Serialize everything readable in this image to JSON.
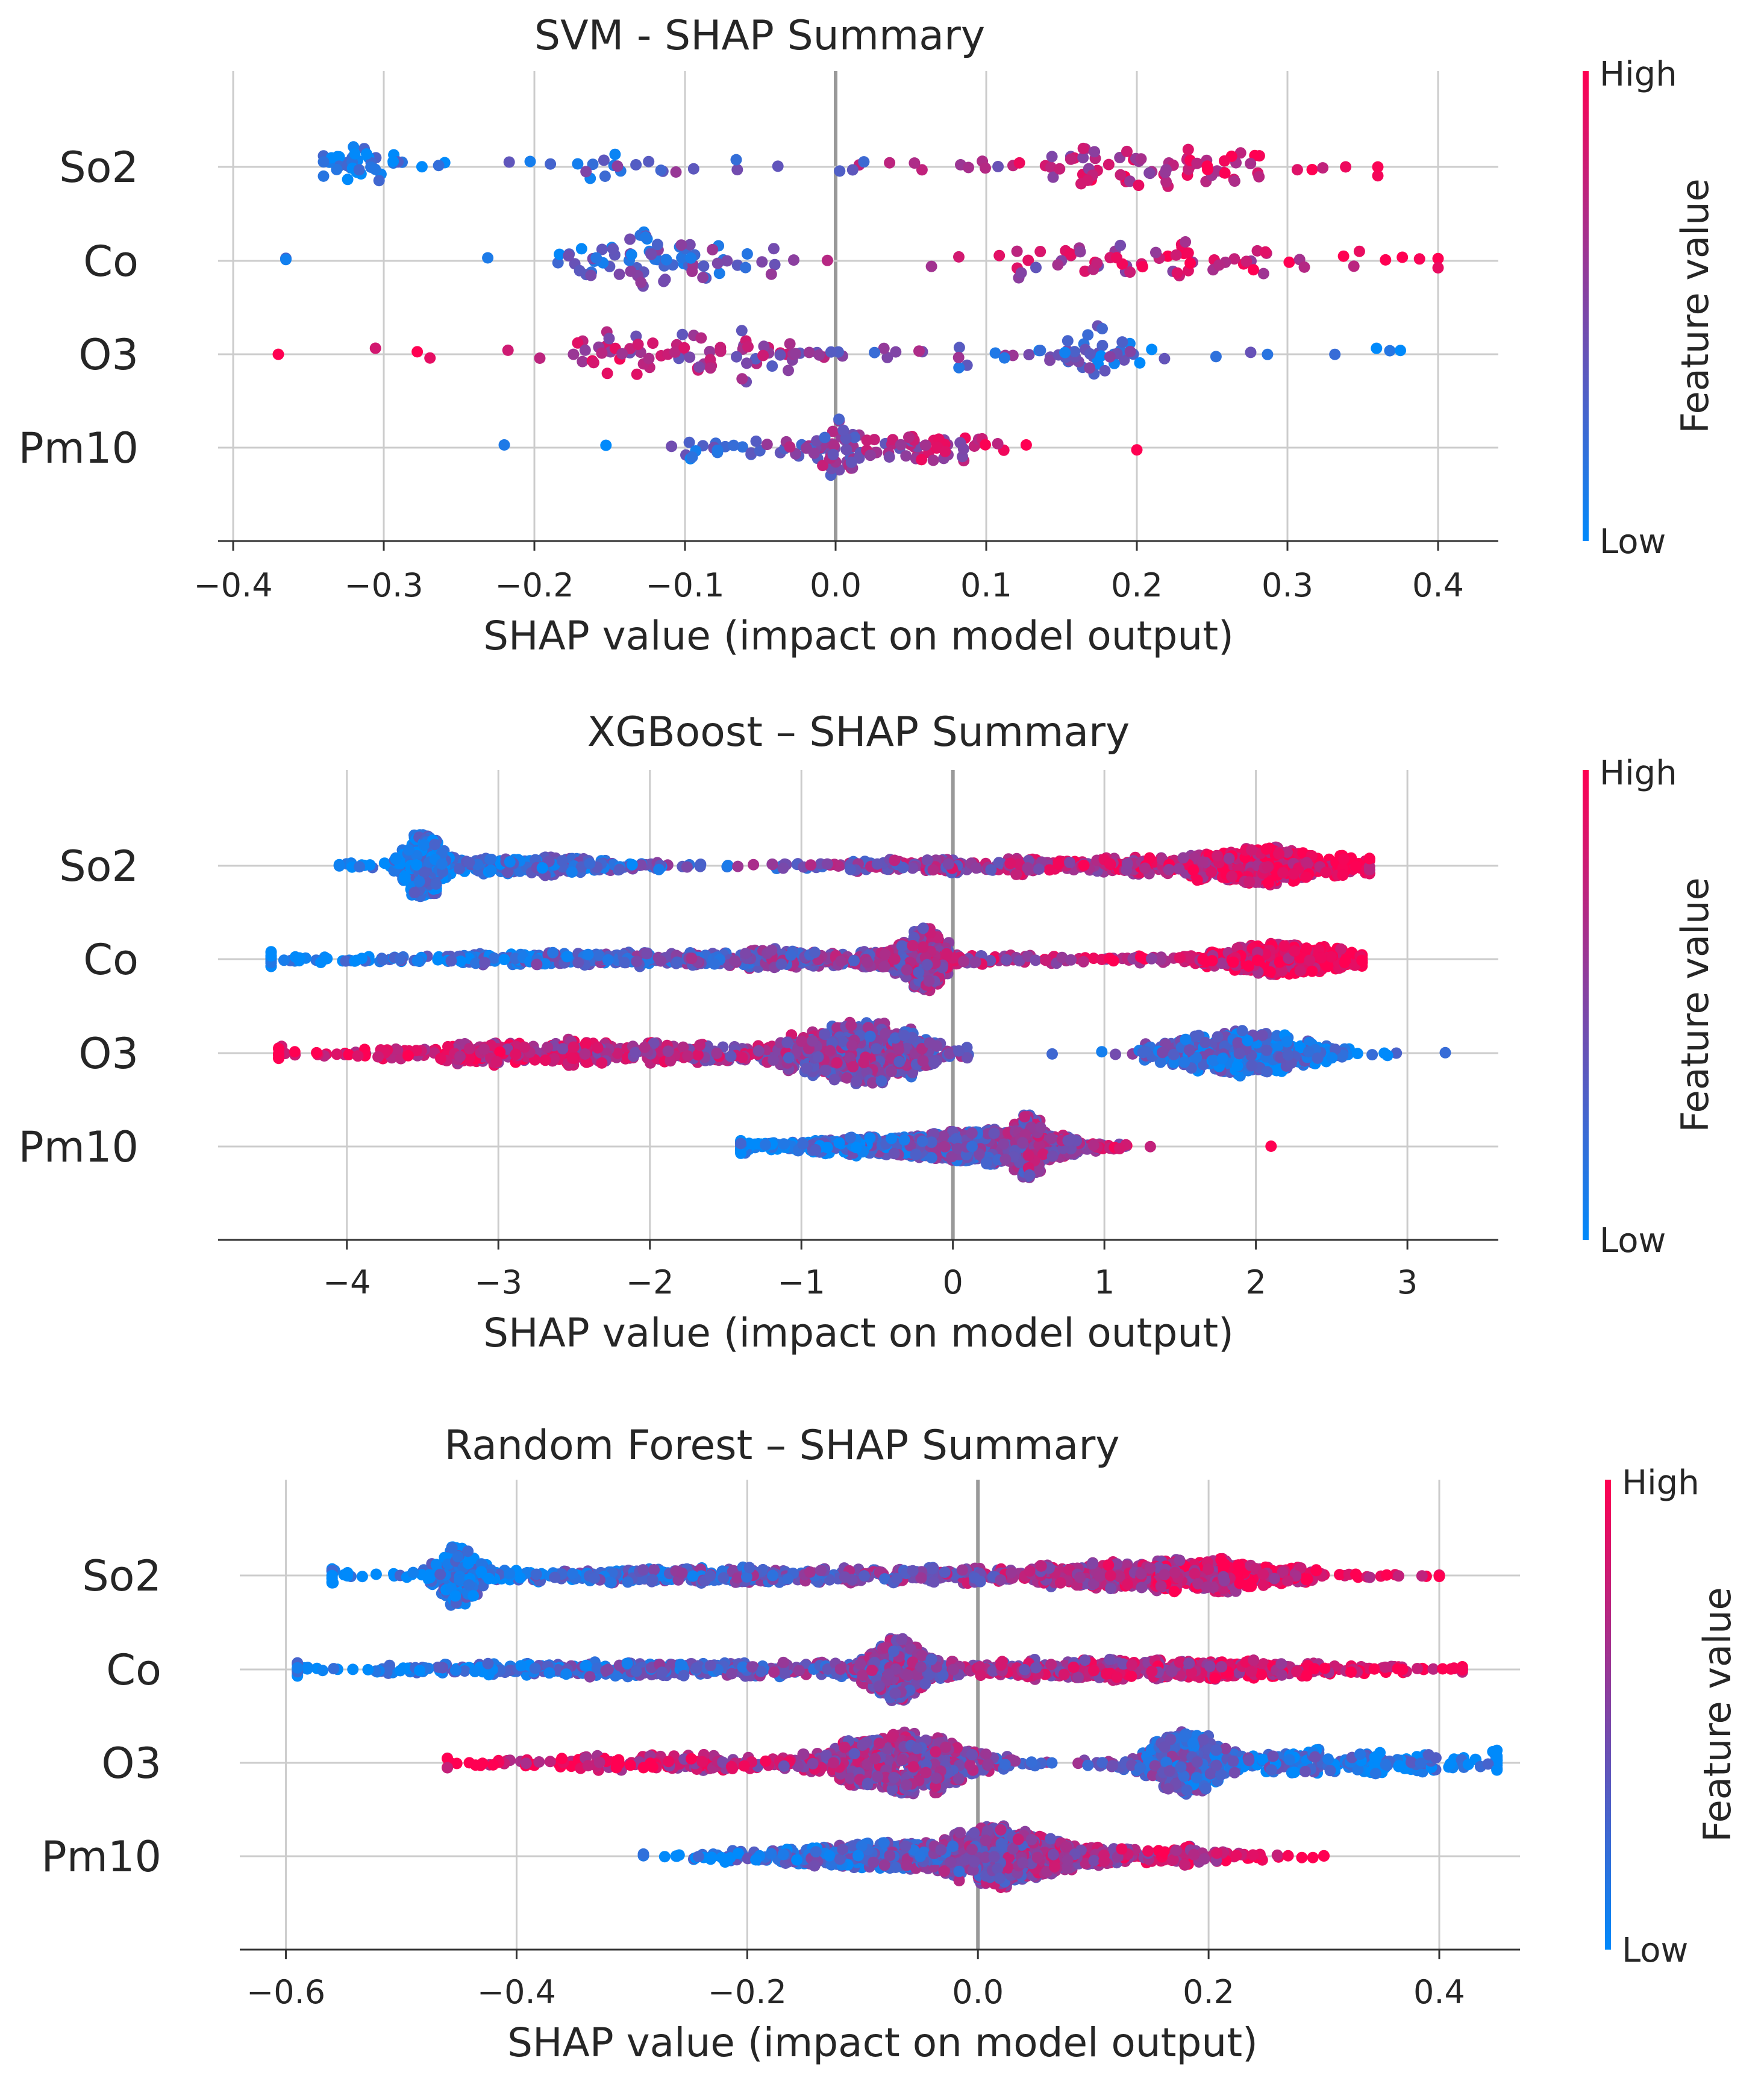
{
  "colors": {
    "low": "#008afb",
    "high": "#ff0052",
    "grid": "#cccccc",
    "axis": "#333333",
    "zero_line": "#999999"
  },
  "chart_data": [
    {
      "type": "scatter",
      "subtype": "shap-beeswarm",
      "title": "SVM - SHAP Summary",
      "xlabel": "SHAP value (impact on model output)",
      "ylabel": "",
      "xlim": [
        -0.41,
        0.44
      ],
      "xticks": [
        -0.4,
        -0.3,
        -0.2,
        -0.1,
        0.0,
        0.1,
        0.2,
        0.3,
        0.4
      ],
      "xtick_labels": [
        "−0.4",
        "−0.3",
        "−0.2",
        "−0.1",
        "0.0",
        "0.1",
        "0.2",
        "0.3",
        "0.4"
      ],
      "features": [
        "So2",
        "Co",
        "O3",
        "Pm10"
      ],
      "grid": true,
      "colorbar": {
        "label": "Feature value",
        "high": "High",
        "low": "Low"
      },
      "series": [
        {
          "name": "So2",
          "n": 150,
          "seed": 11,
          "range": [
            -0.34,
            0.36
          ],
          "slope": 1,
          "modes": [
            {
              "c": -0.32,
              "s": 0.012,
              "w": 0.22
            },
            {
              "c": -0.14,
              "s": 0.02,
              "w": 0.08
            },
            {
              "c": 0.2,
              "s": 0.05,
              "w": 0.42
            },
            {
              "c": 0.0,
              "s": 0.2,
              "w": 0.28
            }
          ]
        },
        {
          "name": "Co",
          "n": 150,
          "seed": 23,
          "range": [
            -0.365,
            0.4
          ],
          "slope": 1,
          "modes": [
            {
              "c": -0.13,
              "s": 0.03,
              "w": 0.32
            },
            {
              "c": -0.07,
              "s": 0.02,
              "w": 0.12
            },
            {
              "c": 0.22,
              "s": 0.07,
              "w": 0.36
            },
            {
              "c": 0.05,
              "s": 0.2,
              "w": 0.2
            }
          ]
        },
        {
          "name": "O3",
          "n": 150,
          "seed": 37,
          "range": [
            -0.37,
            0.375
          ],
          "slope": -1,
          "modes": [
            {
              "c": -0.08,
              "s": 0.04,
              "w": 0.36
            },
            {
              "c": -0.15,
              "s": 0.015,
              "w": 0.1
            },
            {
              "c": 0.17,
              "s": 0.015,
              "w": 0.2
            },
            {
              "c": 0.1,
              "s": 0.15,
              "w": 0.34
            }
          ]
        },
        {
          "name": "Pm10",
          "n": 130,
          "seed": 41,
          "range": [
            -0.22,
            0.2
          ],
          "slope": 1,
          "modes": [
            {
              "c": 0.0,
              "s": 0.01,
              "w": 0.3
            },
            {
              "c": 0.05,
              "s": 0.03,
              "w": 0.4
            },
            {
              "c": -0.05,
              "s": 0.04,
              "w": 0.3
            }
          ]
        }
      ]
    },
    {
      "type": "scatter",
      "subtype": "shap-beeswarm",
      "title": "XGBoost – SHAP Summary",
      "xlabel": "SHAP value (impact on model output)",
      "ylabel": "",
      "xlim": [
        -4.85,
        3.6
      ],
      "xticks": [
        -4,
        -3,
        -2,
        -1,
        0,
        1,
        2,
        3
      ],
      "xtick_labels": [
        "−4",
        "−3",
        "−2",
        "−1",
        "0",
        "1",
        "2",
        "3"
      ],
      "features": [
        "So2",
        "Co",
        "O3",
        "Pm10"
      ],
      "grid": true,
      "colorbar": {
        "label": "Feature value",
        "high": "High",
        "low": "Low"
      },
      "series": [
        {
          "name": "So2",
          "n": 1300,
          "seed": 53,
          "range": [
            -4.05,
            2.75
          ],
          "slope": 1,
          "modes": [
            {
              "c": -3.5,
              "s": 0.08,
              "w": 0.22
            },
            {
              "c": -2.8,
              "s": 0.55,
              "w": 0.18
            },
            {
              "c": 2.0,
              "s": 0.35,
              "w": 0.38
            },
            {
              "c": 0.3,
              "s": 0.9,
              "w": 0.22
            }
          ]
        },
        {
          "name": "Co",
          "n": 1300,
          "seed": 67,
          "range": [
            -4.5,
            2.7
          ],
          "slope": 1,
          "modes": [
            {
              "c": -0.2,
              "s": 0.12,
              "w": 0.22
            },
            {
              "c": 2.2,
              "s": 0.3,
              "w": 0.3
            },
            {
              "c": -1.5,
              "s": 1.5,
              "w": 0.48
            }
          ]
        },
        {
          "name": "O3",
          "n": 1300,
          "seed": 79,
          "range": [
            -4.45,
            3.25
          ],
          "slope": -1,
          "modes": [
            {
              "c": -0.6,
              "s": 0.3,
              "w": 0.4
            },
            {
              "c": 1.9,
              "s": 0.35,
              "w": 0.3
            },
            {
              "c": -2.5,
              "s": 1.0,
              "w": 0.3
            }
          ]
        },
        {
          "name": "Pm10",
          "n": 1300,
          "seed": 83,
          "range": [
            -1.4,
            2.1
          ],
          "slope": 1,
          "modes": [
            {
              "c": 0.3,
              "s": 0.35,
              "w": 0.55
            },
            {
              "c": 0.5,
              "s": 0.05,
              "w": 0.15
            },
            {
              "c": -0.5,
              "s": 0.5,
              "w": 0.3
            }
          ]
        }
      ]
    },
    {
      "type": "scatter",
      "subtype": "shap-beeswarm",
      "title": "Random Forest – SHAP Summary",
      "xlabel": "SHAP value (impact on model output)",
      "ylabel": "",
      "xlim": [
        -0.64,
        0.47
      ],
      "xticks": [
        -0.6,
        -0.4,
        -0.2,
        0.0,
        0.2,
        0.4
      ],
      "xtick_labels": [
        "−0.6",
        "−0.4",
        "−0.2",
        "0.0",
        "0.2",
        "0.4"
      ],
      "features": [
        "So2",
        "Co",
        "O3",
        "Pm10"
      ],
      "grid": true,
      "colorbar": {
        "label": "Feature value",
        "high": "High",
        "low": "Low"
      },
      "series": [
        {
          "name": "So2",
          "n": 1300,
          "seed": 97,
          "range": [
            -0.56,
            0.4
          ],
          "slope": 1,
          "modes": [
            {
              "c": -0.45,
              "s": 0.012,
              "w": 0.18
            },
            {
              "c": 0.17,
              "s": 0.07,
              "w": 0.42
            },
            {
              "c": -0.2,
              "s": 0.18,
              "w": 0.4
            }
          ]
        },
        {
          "name": "Co",
          "n": 1300,
          "seed": 101,
          "range": [
            -0.59,
            0.42
          ],
          "slope": 1,
          "modes": [
            {
              "c": -0.07,
              "s": 0.015,
              "w": 0.25
            },
            {
              "c": 0.15,
              "s": 0.12,
              "w": 0.4
            },
            {
              "c": -0.25,
              "s": 0.18,
              "w": 0.35
            }
          ]
        },
        {
          "name": "O3",
          "n": 1300,
          "seed": 103,
          "range": [
            -0.46,
            0.45
          ],
          "slope": -1,
          "modes": [
            {
              "c": -0.06,
              "s": 0.04,
              "w": 0.42
            },
            {
              "c": 0.18,
              "s": 0.02,
              "w": 0.2
            },
            {
              "c": 0.28,
              "s": 0.1,
              "w": 0.22
            },
            {
              "c": -0.25,
              "s": 0.1,
              "w": 0.16
            }
          ]
        },
        {
          "name": "Pm10",
          "n": 1100,
          "seed": 107,
          "range": [
            -0.29,
            0.3
          ],
          "slope": 1,
          "modes": [
            {
              "c": 0.02,
              "s": 0.04,
              "w": 0.55
            },
            {
              "c": -0.1,
              "s": 0.07,
              "w": 0.3
            },
            {
              "c": 0.15,
              "s": 0.06,
              "w": 0.15
            }
          ]
        }
      ]
    }
  ]
}
